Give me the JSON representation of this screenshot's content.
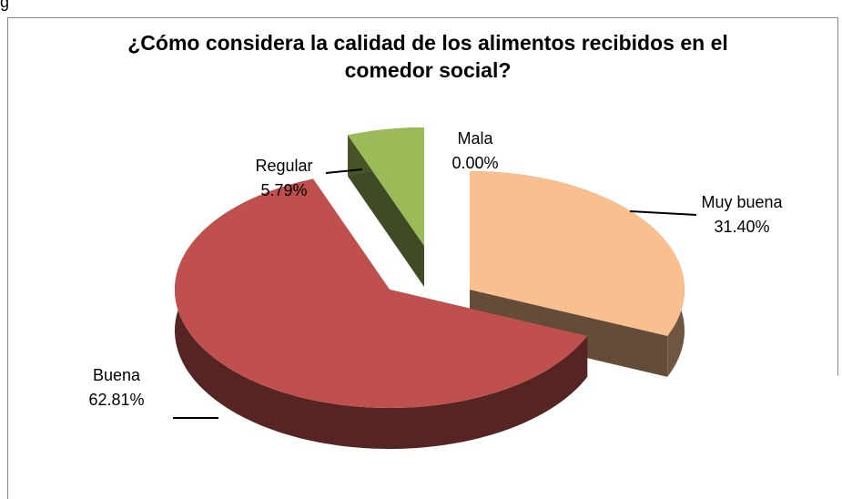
{
  "caption": "g",
  "chart_data": {
    "type": "pie3d",
    "title": "¿Cómo considera la calidad de los alimentos recibidos en el comedor social?",
    "categories": [
      "Muy buena",
      "Buena",
      "Regular",
      "Mala"
    ],
    "values": [
      31.4,
      62.81,
      5.79,
      0
    ],
    "value_labels": [
      "31.40%",
      "62.81%",
      "5.79%",
      "0.00%"
    ],
    "colors": [
      "#F9BF8F",
      "#C0504D",
      "#9BBB59",
      "#4F81BD"
    ]
  }
}
